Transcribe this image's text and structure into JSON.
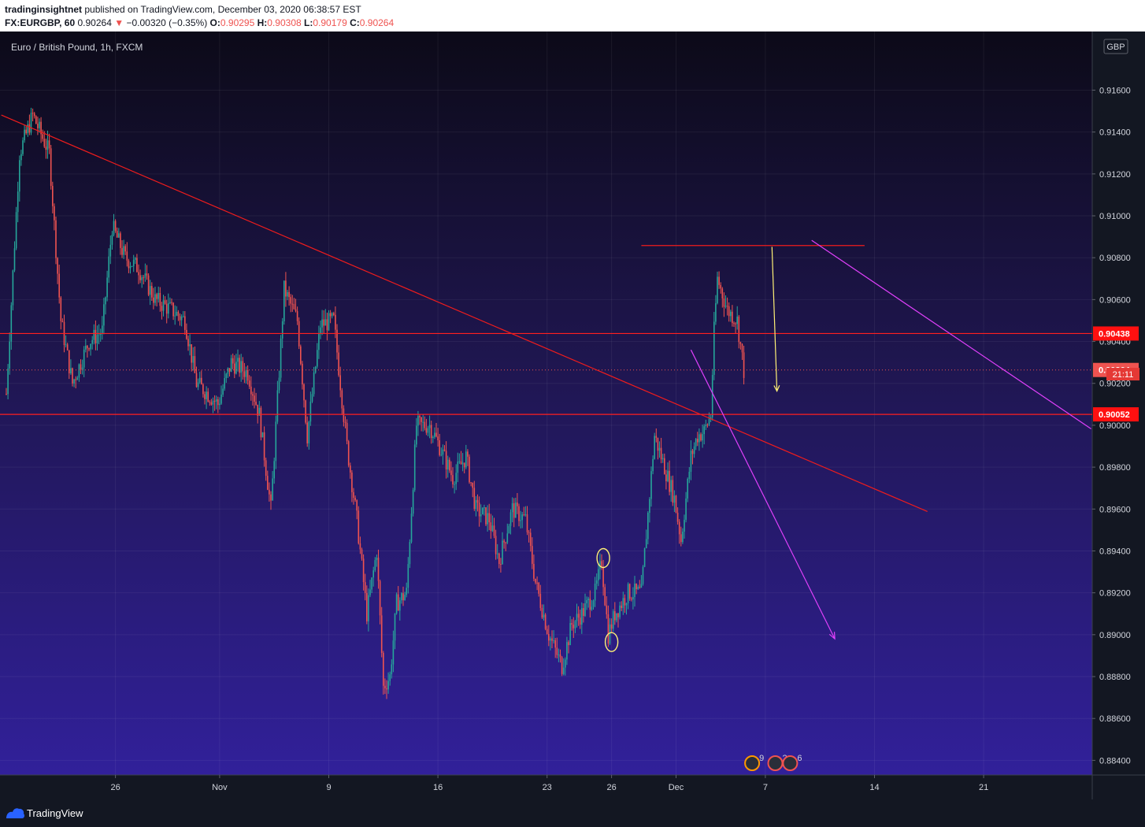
{
  "header": {
    "author": "tradinginsightnet",
    "published": "published on TradingView.com, December 03, 2020 06:38:57 EST",
    "symbol": "FX:EURGBP, 60",
    "last": "0.90264",
    "arrow": "▼",
    "change": "−0.00320 (−0.35%)",
    "o_label": "O:",
    "o_value": "0.90295",
    "h_label": "H:",
    "h_value": "0.90308",
    "l_label": "L:",
    "l_value": "0.90179",
    "c_label": "C:",
    "c_value": "0.90264"
  },
  "chart_data": {
    "type": "candlestick",
    "title": "Euro / British Pound, 1h, FXCM",
    "currency": "GBP",
    "y_ticks": [
      "0.91600",
      "0.91400",
      "0.91200",
      "0.91000",
      "0.90800",
      "0.90600",
      "0.90400",
      "0.90200",
      "0.90000",
      "0.89800",
      "0.89600",
      "0.89400",
      "0.89200",
      "0.89000",
      "0.88800",
      "0.88600",
      "0.88400"
    ],
    "x_ticks": [
      {
        "label": "26",
        "idx": 66
      },
      {
        "label": "Nov",
        "idx": 129
      },
      {
        "label": "9",
        "idx": 195
      },
      {
        "label": "16",
        "idx": 261
      },
      {
        "label": "23",
        "idx": 327
      },
      {
        "label": "26",
        "idx": 366
      },
      {
        "label": "Dec",
        "idx": 405
      },
      {
        "label": "7",
        "idx": 459
      },
      {
        "label": "14",
        "idx": 525
      },
      {
        "label": "21",
        "idx": 591
      }
    ],
    "ylim": [
      0.8833,
      0.9188
    ],
    "price_labels": [
      {
        "value": "0.90438",
        "price": 0.90438,
        "style": "red-line"
      },
      {
        "value": "0.90264",
        "price": 0.90264,
        "style": "last"
      },
      {
        "value": "21:11",
        "price": 0.90244,
        "style": "timer"
      },
      {
        "value": "0.90052",
        "price": 0.90052,
        "style": "red-line"
      }
    ],
    "horizontal_lines": [
      0.90438,
      0.90052
    ],
    "resistance_segment": {
      "price": 0.90858,
      "from_idx": 384,
      "to_idx": 519
    },
    "trend_lines": [
      {
        "color": "#ef1c1c",
        "p1": {
          "idx": -3,
          "price": 0.91481
        },
        "p2": {
          "idx": 557,
          "price": 0.89588
        }
      },
      {
        "color": "#e040fb",
        "p1": {
          "idx": 487,
          "price": 0.90883
        },
        "p2": {
          "idx": 656,
          "price": 0.89983
        }
      },
      {
        "color": "#e040fb",
        "p1": {
          "idx": 414,
          "price": 0.9036
        },
        "p2": {
          "idx": 501,
          "price": 0.8898
        }
      }
    ],
    "arrows": [
      {
        "color": "#fff176",
        "p1": {
          "idx": 463,
          "price": 0.90852
        },
        "p2": {
          "idx": 466,
          "price": 0.90163
        }
      }
    ],
    "circles": [
      {
        "idx": 361,
        "price": 0.89366
      },
      {
        "idx": 366,
        "price": 0.88965
      }
    ],
    "events": [
      {
        "label": "9",
        "idx": 451
      },
      {
        "label": "2",
        "idx": 465
      },
      {
        "label": "6",
        "idx": 474
      }
    ],
    "anchors": [
      [
        0,
        0.9015
      ],
      [
        8,
        0.913
      ],
      [
        16,
        0.9148
      ],
      [
        26,
        0.913
      ],
      [
        33,
        0.905
      ],
      [
        40,
        0.902
      ],
      [
        50,
        0.904
      ],
      [
        58,
        0.9045
      ],
      [
        64,
        0.9095
      ],
      [
        72,
        0.908
      ],
      [
        80,
        0.9075
      ],
      [
        90,
        0.906
      ],
      [
        100,
        0.9055
      ],
      [
        108,
        0.905
      ],
      [
        115,
        0.902
      ],
      [
        122,
        0.9015
      ],
      [
        128,
        0.901
      ],
      [
        136,
        0.903
      ],
      [
        146,
        0.9025
      ],
      [
        153,
        0.9005
      ],
      [
        160,
        0.896
      ],
      [
        168,
        0.9065
      ],
      [
        176,
        0.905
      ],
      [
        182,
        0.8995
      ],
      [
        190,
        0.9048
      ],
      [
        198,
        0.905
      ],
      [
        206,
        0.899
      ],
      [
        212,
        0.8955
      ],
      [
        218,
        0.891
      ],
      [
        224,
        0.894
      ],
      [
        228,
        0.8875
      ],
      [
        232,
        0.888
      ],
      [
        236,
        0.8915
      ],
      [
        242,
        0.892
      ],
      [
        248,
        0.9
      ],
      [
        256,
        0.9
      ],
      [
        262,
        0.899
      ],
      [
        270,
        0.8975
      ],
      [
        278,
        0.8985
      ],
      [
        284,
        0.896
      ],
      [
        292,
        0.8955
      ],
      [
        298,
        0.8935
      ],
      [
        306,
        0.896
      ],
      [
        314,
        0.8955
      ],
      [
        320,
        0.8925
      ],
      [
        328,
        0.89
      ],
      [
        336,
        0.8885
      ],
      [
        342,
        0.8905
      ],
      [
        348,
        0.891
      ],
      [
        356,
        0.892
      ],
      [
        360,
        0.8935
      ],
      [
        364,
        0.89
      ],
      [
        368,
        0.891
      ],
      [
        376,
        0.892
      ],
      [
        384,
        0.892
      ],
      [
        392,
        0.8995
      ],
      [
        400,
        0.8975
      ],
      [
        404,
        0.8965
      ],
      [
        408,
        0.8945
      ],
      [
        414,
        0.8985
      ],
      [
        418,
        0.8995
      ],
      [
        422,
        0.8997
      ],
      [
        426,
        0.9005
      ],
      [
        428,
        0.9045
      ],
      [
        430,
        0.907
      ],
      [
        436,
        0.9055
      ],
      [
        442,
        0.905
      ],
      [
        446,
        0.9026
      ]
    ]
  }
}
